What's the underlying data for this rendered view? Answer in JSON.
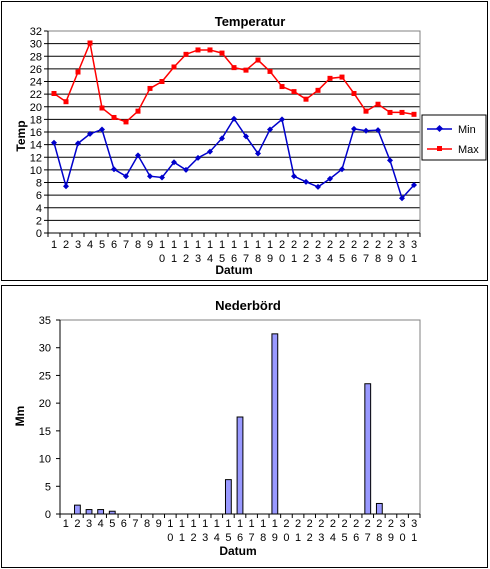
{
  "chart_data": [
    {
      "type": "line",
      "title": "Temperatur",
      "xlabel": "Datum",
      "ylabel": "Temp",
      "ylim": [
        0,
        32
      ],
      "yticks": [
        "0",
        "2",
        "4",
        "6",
        "8",
        "10",
        "12",
        "14",
        "16",
        "18",
        "20",
        "22",
        "24",
        "26",
        "28",
        "30",
        "32"
      ],
      "x": [
        "1",
        "2",
        "3",
        "4",
        "5",
        "6",
        "7",
        "8",
        "9",
        "10",
        "11",
        "12",
        "13",
        "14",
        "15",
        "16",
        "17",
        "18",
        "19",
        "20",
        "21",
        "22",
        "23",
        "24",
        "25",
        "26",
        "27",
        "28",
        "29",
        "30",
        "31"
      ],
      "grid": true,
      "legend": "right",
      "series": [
        {
          "name": "Min",
          "color": "#0000cc",
          "values": [
            14.3,
            7.4,
            14.2,
            15.7,
            16.4,
            10.1,
            9.0,
            12.3,
            9.0,
            8.8,
            11.2,
            10.0,
            11.9,
            12.9,
            15.0,
            18.1,
            15.3,
            12.6,
            16.4,
            18.0,
            9.0,
            8.1,
            7.3,
            8.6,
            10.1,
            16.5,
            16.2,
            16.3,
            11.5,
            5.5,
            7.6
          ]
        },
        {
          "name": "Max",
          "color": "#ff0000",
          "values": [
            22.1,
            20.8,
            25.5,
            30.1,
            19.8,
            18.3,
            17.6,
            19.3,
            22.9,
            24.0,
            26.3,
            28.3,
            29.0,
            29.0,
            28.5,
            26.2,
            25.8,
            27.4,
            25.6,
            23.2,
            22.4,
            21.2,
            22.6,
            24.5,
            24.7,
            22.1,
            19.3,
            20.4,
            19.1,
            19.1,
            18.8
          ]
        }
      ]
    },
    {
      "type": "bar",
      "title": "Nederbörd",
      "xlabel": "Datum",
      "ylabel": "Mm",
      "ylim": [
        0,
        35
      ],
      "yticks": [
        "0",
        "5",
        "10",
        "15",
        "20",
        "25",
        "30",
        "35"
      ],
      "categories": [
        "1",
        "2",
        "3",
        "4",
        "5",
        "6",
        "7",
        "8",
        "9",
        "10",
        "11",
        "12",
        "13",
        "14",
        "15",
        "16",
        "17",
        "18",
        "19",
        "20",
        "21",
        "22",
        "23",
        "24",
        "25",
        "26",
        "27",
        "28",
        "29",
        "30",
        "31"
      ],
      "grid": false,
      "bar_color": "#9999ff",
      "values": [
        0,
        1.6,
        0.8,
        0.8,
        0.5,
        0,
        0,
        0,
        0,
        0,
        0,
        0,
        0,
        0,
        6.2,
        17.5,
        0,
        0,
        32.5,
        0,
        0,
        0,
        0,
        0,
        0,
        0,
        23.5,
        1.9,
        0,
        0,
        0
      ]
    }
  ]
}
